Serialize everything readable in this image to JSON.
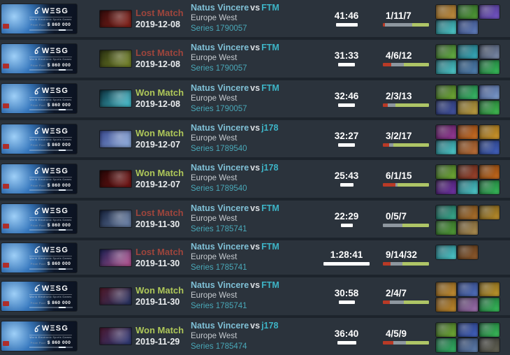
{
  "banner": {
    "logo": "WΞSG",
    "subtitle": "World Electronic Sports Games",
    "prize_label": "Prize Pool",
    "prize": "$ 860 000"
  },
  "colors": {
    "row_bg": "#2b333c",
    "separator": "#1d242c",
    "loss_red": "#9e453c",
    "win_green": "#afc859",
    "team_primary": "#7fc0d6",
    "team_secondary": "#3db4c6",
    "series_teal": "#49a8b8",
    "kills_red": "#b93a26",
    "deaths_gray": "#8e979f",
    "assists_green": "#aec566",
    "duration_bar": "#ffffff"
  },
  "rows": [
    {
      "result": "Lost Match",
      "result_type": "loss",
      "date": "2019-12-08",
      "team1": "Natus Vincere",
      "vs": "vs",
      "team2": "FTM",
      "region": "Europe West",
      "series": "Series 1790057",
      "duration": "41:46",
      "duration_minutes": 41.8,
      "kda": "1/11/7",
      "kills": 1,
      "deaths": 11,
      "assists": 7,
      "hero_colors": [
        "#330b0b",
        "#8c241c"
      ],
      "items": [
        [
          "#6b4a16",
          "#c99445"
        ],
        [
          "#1d4a1e",
          "#57a33a"
        ],
        [
          "#3a2a6a",
          "#7a5ad0"
        ],
        [
          "#0d4a55",
          "#58d8d8"
        ],
        [
          "#1a2a5a",
          "#6a88c8"
        ]
      ]
    },
    {
      "result": "Lost Match",
      "result_type": "loss",
      "date": "2019-12-08",
      "team1": "Natus Vincere",
      "vs": "vs",
      "team2": "FTM",
      "region": "Europe West",
      "series": "Series 1790057",
      "duration": "31:33",
      "duration_minutes": 31.6,
      "kda": "4/6/12",
      "kills": 4,
      "deaths": 6,
      "assists": 12,
      "hero_colors": [
        "#2c3312",
        "#7a8a2a"
      ],
      "items": [
        [
          "#1e3a1a",
          "#6fc04a"
        ],
        [
          "#0e4450",
          "#3fb8c8"
        ],
        [
          "#222a3a",
          "#8898b8"
        ],
        [
          "#0d4a55",
          "#58d8d8"
        ],
        [
          "#1a3a5a",
          "#5888b8"
        ],
        [
          "#0f4a28",
          "#3dc860"
        ]
      ]
    },
    {
      "result": "Won Match",
      "result_type": "win",
      "date": "2019-12-08",
      "team1": "Natus Vincere",
      "vs": "vs",
      "team2": "FTM",
      "region": "Europe West",
      "series": "Series 1790057",
      "duration": "32:46",
      "duration_minutes": 32.8,
      "kda": "2/3/13",
      "kills": 2,
      "deaths": 3,
      "assists": 13,
      "hero_colors": [
        "#0c3240",
        "#49c8d8"
      ],
      "items": [
        [
          "#23401a",
          "#7ab83a"
        ],
        [
          "#0f4a28",
          "#40c870"
        ],
        [
          "#2a3a6a",
          "#88a8d8"
        ],
        [
          "#1a2450",
          "#4858a8"
        ],
        [
          "#5a4a1a",
          "#c8a848"
        ],
        [
          "#104a20",
          "#48c858"
        ]
      ]
    },
    {
      "result": "Won Match",
      "result_type": "win",
      "date": "2019-12-07",
      "team1": "Natus Vincere",
      "vs": "vs",
      "team2": "j178",
      "region": "Europe West",
      "series": "Series 1789540",
      "duration": "32:27",
      "duration_minutes": 32.5,
      "kda": "3/2/17",
      "kills": 3,
      "deaths": 2,
      "assists": 17,
      "hero_colors": [
        "#3a4a90",
        "#90b0e0"
      ],
      "items": [
        [
          "#3a1040",
          "#a040a0"
        ],
        [
          "#5a2408",
          "#d87828"
        ],
        [
          "#6a4a10",
          "#d8a030"
        ],
        [
          "#0d4a55",
          "#58d8d8"
        ],
        [
          "#5a3010",
          "#c87840"
        ],
        [
          "#18285a",
          "#4868c8"
        ]
      ]
    },
    {
      "result": "Won Match",
      "result_type": "win",
      "date": "2019-12-07",
      "team1": "Natus Vincere",
      "vs": "vs",
      "team2": "j178",
      "region": "Europe West",
      "series": "Series 1789540",
      "duration": "25:43",
      "duration_minutes": 25.7,
      "kda": "6/1/15",
      "kills": 6,
      "deaths": 1,
      "assists": 15,
      "hero_colors": [
        "#260606",
        "#7a1616"
      ],
      "items": [
        [
          "#23401a",
          "#7ab83a"
        ],
        [
          "#3a1a10",
          "#a84830"
        ],
        [
          "#5a2c08",
          "#d07020"
        ],
        [
          "#2a1040",
          "#7838b0"
        ],
        [
          "#0d4a55",
          "#58d8d8"
        ],
        [
          "#0f4a28",
          "#3dc860"
        ]
      ]
    },
    {
      "result": "Lost Match",
      "result_type": "loss",
      "date": "2019-11-30",
      "team1": "Natus Vincere",
      "vs": "vs",
      "team2": "FTM",
      "region": "Europe West",
      "series": "Series 1785741",
      "duration": "22:29",
      "duration_minutes": 22.5,
      "kda": "0/5/7",
      "kills": 0,
      "deaths": 5,
      "assists": 7,
      "hero_colors": [
        "#16223c",
        "#7088b0"
      ],
      "items": [
        [
          "#0e3a38",
          "#40b898"
        ],
        [
          "#4a3010",
          "#b87830"
        ],
        [
          "#4a3a10",
          "#c89830"
        ],
        [
          "#1d4a1e",
          "#57a33a"
        ],
        [
          "#4a3a20",
          "#b89858"
        ]
      ]
    },
    {
      "result": "Lost Match",
      "result_type": "loss",
      "date": "2019-11-30",
      "team1": "Natus Vincere",
      "vs": "vs",
      "team2": "FTM",
      "region": "Europe West",
      "series": "Series 1785741",
      "duration": "1:28:41",
      "duration_minutes": 88.7,
      "kda": "9/14/32",
      "kills": 9,
      "deaths": 14,
      "assists": 32,
      "hero_colors": [
        "#1a2050",
        "#c05898"
      ],
      "items": [
        [
          "#0d4a55",
          "#58d8d8"
        ],
        [
          "#3a2410",
          "#986030"
        ]
      ]
    },
    {
      "result": "Won Match",
      "result_type": "win",
      "date": "2019-11-30",
      "team1": "Natus Vincere",
      "vs": "vs",
      "team2": "FTM",
      "region": "Europe West",
      "series": "Series 1785741",
      "duration": "30:58",
      "duration_minutes": 31.0,
      "kda": "2/4/7",
      "kills": 2,
      "deaths": 4,
      "assists": 7,
      "hero_colors": [
        "#501828",
        "#28386a"
      ],
      "items": [
        [
          "#5a3c10",
          "#d09838"
        ],
        [
          "#1a2a5a",
          "#5878c8"
        ],
        [
          "#5a4410",
          "#c8a030"
        ],
        [
          "#5a3a10",
          "#c89030"
        ],
        [
          "#3a2a4a",
          "#a878b8"
        ],
        [
          "#0f4a28",
          "#3dc860"
        ]
      ]
    },
    {
      "result": "Won Match",
      "result_type": "win",
      "date": "2019-11-29",
      "team1": "Natus Vincere",
      "vs": "vs",
      "team2": "j178",
      "region": "Europe West",
      "series": "Series 1785474",
      "duration": "36:40",
      "duration_minutes": 36.7,
      "kda": "4/5/9",
      "kills": 4,
      "deaths": 5,
      "assists": 9,
      "hero_colors": [
        "#4a1830",
        "#304080"
      ],
      "items": [
        [
          "#23401a",
          "#7ab83a"
        ],
        [
          "#18285a",
          "#4868c8"
        ],
        [
          "#0f4a28",
          "#40c860"
        ],
        [
          "#104a30",
          "#38b868"
        ],
        [
          "#1a2a4a",
          "#6888b8"
        ],
        [
          "#2a2a2a",
          "#686858"
        ]
      ]
    }
  ]
}
